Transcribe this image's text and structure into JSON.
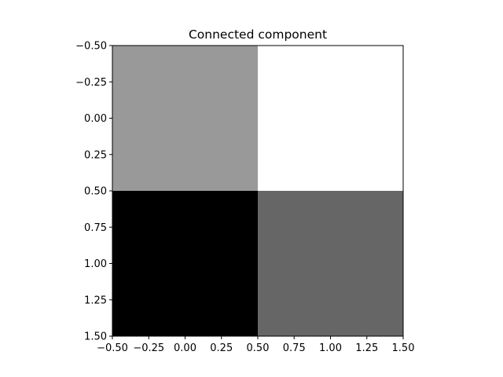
{
  "chart_data": {
    "type": "heatmap",
    "title": "Connected component",
    "xlabel": "",
    "ylabel": "",
    "colormap": "gray",
    "value_range": [
      0,
      1
    ],
    "matrix": [
      [
        0.6,
        1.0
      ],
      [
        0.0,
        0.4
      ]
    ],
    "x_categories": [
      0,
      1
    ],
    "y_categories": [
      0,
      1
    ],
    "xlim": [
      -0.5,
      1.5
    ],
    "ylim": [
      1.5,
      -0.5
    ],
    "y_inverted": true,
    "grid": false,
    "x_ticks": [
      -0.5,
      -0.25,
      0.0,
      0.25,
      0.5,
      0.75,
      1.0,
      1.25,
      1.5
    ],
    "x_tick_labels": [
      "−0.50",
      "−0.25",
      "0.00",
      "0.25",
      "0.50",
      "0.75",
      "1.00",
      "1.25",
      "1.50"
    ],
    "y_ticks": [
      -0.5,
      -0.25,
      0.0,
      0.25,
      0.5,
      0.75,
      1.0,
      1.25,
      1.5
    ],
    "y_tick_labels": [
      "−0.50",
      "−0.25",
      "0.00",
      "0.25",
      "0.50",
      "0.75",
      "1.00",
      "1.25",
      "1.50"
    ]
  }
}
